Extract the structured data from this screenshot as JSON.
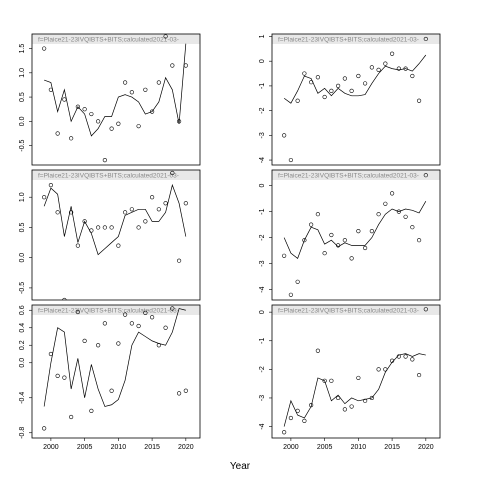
{
  "xlabel": "Year",
  "chart_data": [
    {
      "type": "scatter",
      "title": "f=Plaice21-23IVQIBTS+BITS;calculated2021-03-",
      "x": [
        1999,
        2000,
        2001,
        2002,
        2003,
        2004,
        2005,
        2006,
        2007,
        2008,
        2009,
        2010,
        2011,
        2012,
        2013,
        2014,
        2015,
        2016,
        2017,
        2018,
        2019,
        2020
      ],
      "values": [
        1.5,
        0.65,
        -0.25,
        0.45,
        -0.35,
        0.3,
        0.25,
        0.15,
        0.0,
        -0.8,
        -0.15,
        -0.05,
        0.8,
        0.6,
        -0.1,
        0.65,
        0.2,
        0.8,
        1.75,
        1.15,
        0.0,
        1.15
      ],
      "line": [
        0.85,
        0.8,
        0.2,
        0.65,
        0.0,
        0.3,
        0.15,
        -0.3,
        -0.15,
        0.1,
        0.1,
        0.5,
        0.55,
        0.5,
        0.4,
        0.15,
        0.2,
        0.4,
        0.9,
        0.65,
        -0.05,
        1.6
      ],
      "xlim": [
        1997.2,
        2022.1
      ],
      "ylim": [
        -0.9,
        1.8
      ],
      "yticks": [
        {
          "value": -0.5,
          "label": "-0.5"
        },
        {
          "value": 0,
          "label": "0.0"
        },
        0.5,
        {
          "value": 1,
          "label": "1.0"
        },
        1.5
      ]
    },
    {
      "type": "scatter",
      "title": "f=Plaice21-23IVQIBTS+BITS;calculated2021-03-",
      "x": [
        1999,
        2000,
        2001,
        2002,
        2003,
        2004,
        2005,
        2006,
        2007,
        2008,
        2009,
        2010,
        2011,
        2012,
        2013,
        2014,
        2015,
        2016,
        2017,
        2018,
        2019,
        2020
      ],
      "values": [
        -3.0,
        -4.0,
        -1.6,
        -0.5,
        -0.85,
        -0.65,
        -1.45,
        -1.2,
        -1.0,
        -0.7,
        -1.2,
        -0.6,
        -0.9,
        -0.25,
        -0.35,
        -0.1,
        0.3,
        -0.3,
        -0.3,
        -0.6,
        -1.6,
        0.9
      ],
      "line": [
        -1.5,
        -1.7,
        -1.2,
        -0.6,
        -0.7,
        -1.3,
        -1.1,
        -1.4,
        -1.1,
        -1.3,
        -1.4,
        -1.4,
        -1.35,
        -0.9,
        -0.5,
        -0.2,
        -0.3,
        -0.35,
        -0.3,
        -0.4,
        -0.1,
        0.25
      ],
      "xlim": [
        1997.2,
        2022.1
      ],
      "ylim": [
        -4.2,
        1.1
      ],
      "yticks": [
        -4,
        -3,
        -2,
        -1,
        0,
        1
      ]
    },
    {
      "type": "scatter",
      "title": "f=Plaice21-23IVQIBTS+BITS;calculated2021-03-",
      "x": [
        1999,
        2000,
        2001,
        2002,
        2003,
        2004,
        2005,
        2006,
        2007,
        2008,
        2009,
        2010,
        2011,
        2012,
        2013,
        2014,
        2015,
        2016,
        2017,
        2018,
        2019,
        2020
      ],
      "values": [
        1.0,
        1.2,
        0.75,
        -0.7,
        0.75,
        0.2,
        0.6,
        0.45,
        0.5,
        0.5,
        0.5,
        0.2,
        0.75,
        0.8,
        0.5,
        0.6,
        1.0,
        0.8,
        0.9,
        1.4,
        -0.05,
        0.9
      ],
      "line": [
        0.85,
        1.15,
        1.05,
        0.35,
        0.85,
        0.25,
        0.6,
        0.4,
        0.05,
        0.15,
        0.25,
        0.35,
        0.7,
        0.75,
        0.8,
        0.8,
        0.6,
        0.6,
        0.75,
        1.2,
        0.9,
        0.35
      ],
      "xlim": [
        1997.2,
        2022.1
      ],
      "ylim": [
        -0.7,
        1.45
      ],
      "yticks": [
        {
          "value": -0.5,
          "label": "-0.5"
        },
        {
          "value": 0,
          "label": "0.0"
        },
        0.5,
        {
          "value": 1,
          "label": "1.0"
        }
      ]
    },
    {
      "type": "scatter",
      "title": "f=Plaice21-23IVQIBTS+BITS;calculated2021-03-",
      "x": [
        1999,
        2000,
        2001,
        2002,
        2003,
        2004,
        2005,
        2006,
        2007,
        2008,
        2009,
        2010,
        2011,
        2012,
        2013,
        2014,
        2015,
        2016,
        2017,
        2018,
        2019,
        2020
      ],
      "values": [
        -2.7,
        -4.2,
        -3.7,
        -2.1,
        -1.5,
        -1.1,
        -2.6,
        -1.9,
        -2.3,
        -2.1,
        -2.8,
        -1.75,
        -2.4,
        -1.75,
        -1.1,
        -0.7,
        -0.3,
        -1.0,
        -1.2,
        -1.6,
        -2.1,
        0.4
      ],
      "line": [
        -2.0,
        -2.6,
        -2.8,
        -2.1,
        -1.6,
        -1.7,
        -2.25,
        -2.1,
        -2.35,
        -2.2,
        -2.3,
        -2.3,
        -2.3,
        -2.0,
        -1.5,
        -1.1,
        -0.9,
        -1.0,
        -0.9,
        -0.95,
        -1.05,
        -0.6
      ],
      "xlim": [
        1997.2,
        2022.1
      ],
      "ylim": [
        -4.4,
        0.6
      ],
      "yticks": [
        -4,
        -3,
        -2,
        -1,
        0
      ]
    },
    {
      "type": "scatter",
      "title": "f=Plaice21-23IVQIBTS+BITS;calculated2021-03-",
      "x": [
        1999,
        2000,
        2001,
        2002,
        2003,
        2004,
        2005,
        2006,
        2007,
        2008,
        2009,
        2010,
        2011,
        2012,
        2013,
        2014,
        2015,
        2016,
        2017,
        2018,
        2019,
        2020
      ],
      "values": [
        -0.75,
        0.1,
        -0.15,
        -0.17,
        -0.62,
        0.58,
        0.25,
        -0.55,
        0.2,
        0.45,
        -0.32,
        0.22,
        0.55,
        0.45,
        0.42,
        0.57,
        0.52,
        0.2,
        0.4,
        0.62,
        -0.35,
        -0.32
      ],
      "line": [
        -0.5,
        0.0,
        0.4,
        0.35,
        -0.3,
        0.05,
        -0.4,
        -0.02,
        -0.3,
        -0.5,
        -0.48,
        -0.42,
        -0.2,
        0.2,
        0.35,
        0.3,
        0.25,
        0.22,
        0.2,
        0.35,
        0.62,
        0.6
      ],
      "xlim": [
        1997.2,
        2022.1
      ],
      "ylim": [
        -0.86,
        0.66
      ],
      "xticks": [
        2000,
        2005,
        2010,
        2015,
        2020
      ],
      "yticks": [
        -0.8,
        -0.4,
        {
          "value": 0,
          "label": "0.0"
        },
        0.2,
        0.4,
        0.6
      ]
    },
    {
      "type": "scatter",
      "title": "f=Plaice21-23IVQIBTS+BITS;calculated2021-03-",
      "x": [
        1999,
        2000,
        2001,
        2002,
        2003,
        2004,
        2005,
        2006,
        2007,
        2008,
        2009,
        2010,
        2011,
        2012,
        2013,
        2014,
        2015,
        2016,
        2017,
        2018,
        2019,
        2020
      ],
      "values": [
        -4.2,
        -3.7,
        -3.45,
        -3.8,
        -3.25,
        -1.35,
        -2.4,
        -2.4,
        -3.0,
        -3.4,
        -3.3,
        -2.3,
        -3.1,
        -3.0,
        -2.0,
        -2.0,
        -1.7,
        -1.55,
        -1.55,
        -1.65,
        -2.2,
        0.1
      ],
      "line": [
        -4.0,
        -3.1,
        -3.6,
        -3.7,
        -3.3,
        -2.3,
        -2.4,
        -3.1,
        -2.9,
        -3.2,
        -3.0,
        -3.1,
        -3.05,
        -3.0,
        -2.7,
        -2.1,
        -1.75,
        -1.5,
        -1.45,
        -1.55,
        -1.45,
        -1.5
      ],
      "xlim": [
        1997.2,
        2022.1
      ],
      "ylim": [
        -4.4,
        0.25
      ],
      "xticks": [
        2000,
        2005,
        2010,
        2015,
        2020
      ],
      "yticks": [
        -4,
        -3,
        -2,
        -1,
        0
      ]
    }
  ]
}
